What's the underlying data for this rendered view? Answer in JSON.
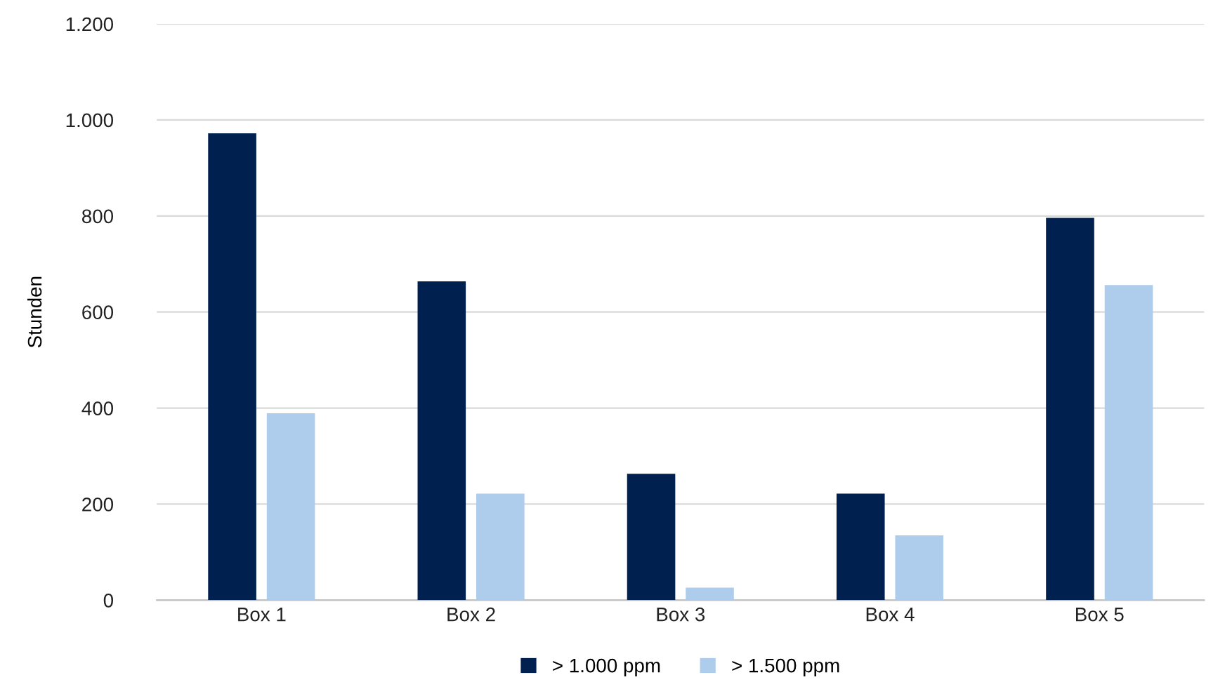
{
  "chart_data": {
    "type": "bar",
    "ylabel": "Stunden",
    "categories": [
      "Box 1",
      "Box 2",
      "Box 3",
      "Box 4",
      "Box 5"
    ],
    "series": [
      {
        "name": "> 1.000 ppm",
        "color": "#002050",
        "values": [
          972,
          664,
          263,
          222,
          796
        ]
      },
      {
        "name": "> 1.500 ppm",
        "color": "#aecdec",
        "values": [
          389,
          222,
          26,
          135,
          656
        ]
      }
    ],
    "ylim": [
      0,
      1200
    ],
    "yticks": [
      0,
      200,
      400,
      600,
      800,
      {
        "value": 1000,
        "label": "1.000"
      },
      {
        "value": 1200,
        "label": "1.200"
      }
    ],
    "grid": "y",
    "legend": "bottom"
  }
}
